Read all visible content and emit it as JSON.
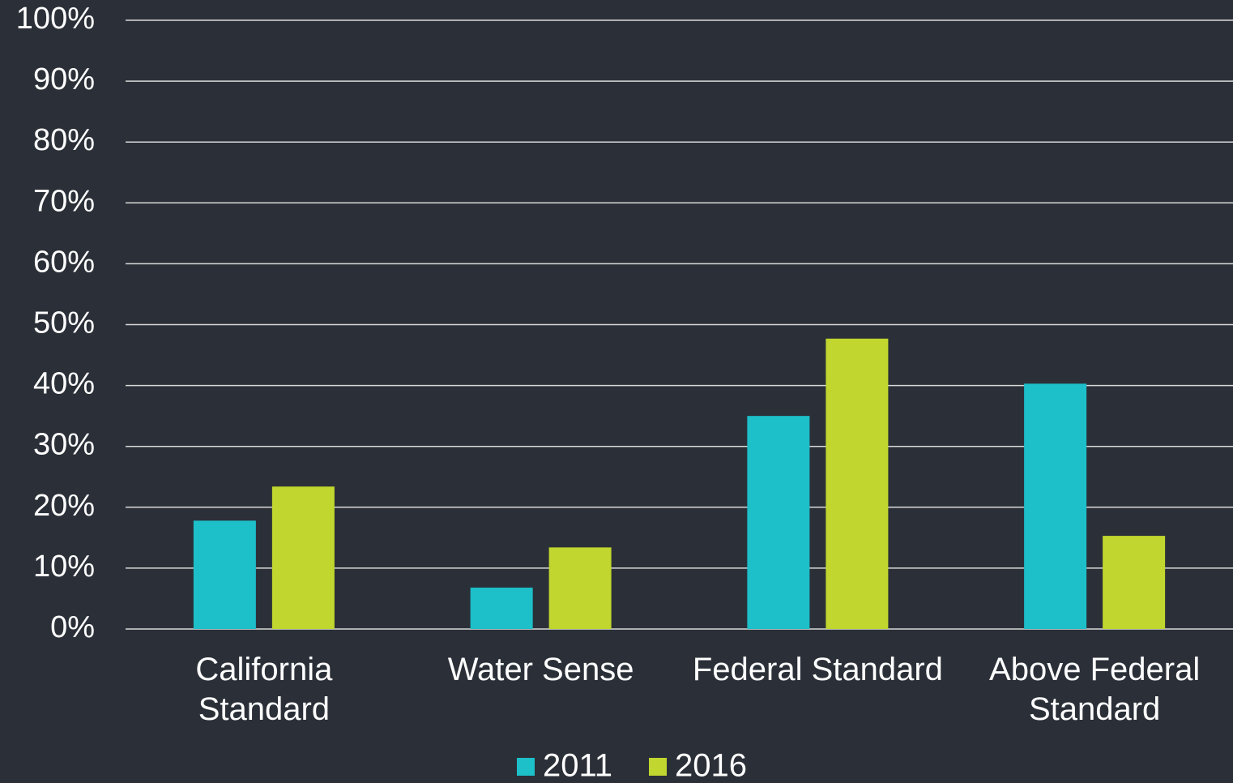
{
  "chart_data": {
    "type": "bar",
    "categories": [
      "California Standard",
      "Water Sense",
      "Federal Standard",
      "Above Federal Standard"
    ],
    "series": [
      {
        "name": "2011",
        "color": "#1dbfc9",
        "values": [
          17.8,
          6.8,
          35.0,
          40.3
        ]
      },
      {
        "name": "2016",
        "color": "#c1d62e",
        "values": [
          23.4,
          13.4,
          47.7,
          15.3
        ]
      }
    ],
    "ylim": [
      0,
      100
    ],
    "yticks": [
      {
        "value": 0,
        "label": "0%"
      },
      {
        "value": 10,
        "label": "10%"
      },
      {
        "value": 20,
        "label": "20%"
      },
      {
        "value": 30,
        "label": "30%"
      },
      {
        "value": 40,
        "label": "40%"
      },
      {
        "value": 50,
        "label": "50%"
      },
      {
        "value": 60,
        "label": "60%"
      },
      {
        "value": 70,
        "label": "70%"
      },
      {
        "value": 80,
        "label": "80%"
      },
      {
        "value": 90,
        "label": "90%"
      },
      {
        "value": 100,
        "label": "100%"
      }
    ],
    "grid": true,
    "legend": "bottom"
  }
}
